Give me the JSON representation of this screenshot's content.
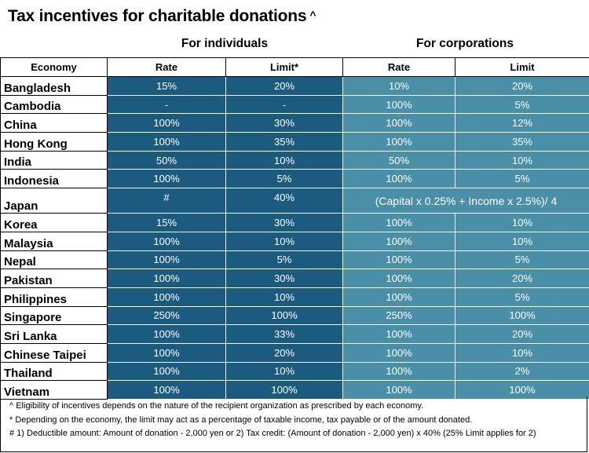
{
  "title": "Tax incentives for charitable donations",
  "title_marker": "^",
  "groups": {
    "individuals": "For individuals",
    "corporations": "For corporations"
  },
  "headers": {
    "economy": "Economy",
    "ind_rate": "Rate",
    "ind_limit": "Limit*",
    "corp_rate": "Rate",
    "corp_limit": "Limit"
  },
  "rows": [
    {
      "economy": "Bangladesh",
      "ind_rate": "15%",
      "ind_limit": "20%",
      "corp_rate": "10%",
      "corp_limit": "20%"
    },
    {
      "economy": "Cambodia",
      "ind_rate": "-",
      "ind_limit": "-",
      "corp_rate": "100%",
      "corp_limit": "5%"
    },
    {
      "economy": "China",
      "ind_rate": "100%",
      "ind_limit": "30%",
      "corp_rate": "100%",
      "corp_limit": "12%"
    },
    {
      "economy": "Hong Kong",
      "ind_rate": "100%",
      "ind_limit": "35%",
      "corp_rate": "100%",
      "corp_limit": "35%"
    },
    {
      "economy": "India",
      "ind_rate": "50%",
      "ind_limit": "10%",
      "corp_rate": "50%",
      "corp_limit": "10%"
    },
    {
      "economy": "Indonesia",
      "ind_rate": "100%",
      "ind_limit": "5%",
      "corp_rate": "100%",
      "corp_limit": "5%"
    },
    {
      "economy": "Japan",
      "ind_rate": "#",
      "ind_limit": "40%",
      "corp_combined": "(Capital x 0.25% + Income x 2.5%)/ 4"
    },
    {
      "economy": "Korea",
      "ind_rate": "15%",
      "ind_limit": "30%",
      "corp_rate": "100%",
      "corp_limit": "10%"
    },
    {
      "economy": "Malaysia",
      "ind_rate": "100%",
      "ind_limit": "10%",
      "corp_rate": "100%",
      "corp_limit": "10%"
    },
    {
      "economy": "Nepal",
      "ind_rate": "100%",
      "ind_limit": "5%",
      "corp_rate": "100%",
      "corp_limit": "5%"
    },
    {
      "economy": "Pakistan",
      "ind_rate": "100%",
      "ind_limit": "30%",
      "corp_rate": "100%",
      "corp_limit": "20%"
    },
    {
      "economy": "Philippines",
      "ind_rate": "100%",
      "ind_limit": "10%",
      "corp_rate": "100%",
      "corp_limit": "5%"
    },
    {
      "economy": "Singapore",
      "ind_rate": "250%",
      "ind_limit": "100%",
      "corp_rate": "250%",
      "corp_limit": "100%"
    },
    {
      "economy": "Sri Lanka",
      "ind_rate": "100%",
      "ind_limit": "33%",
      "corp_rate": "100%",
      "corp_limit": "20%"
    },
    {
      "economy": "Chinese Taipei",
      "ind_rate": "100%",
      "ind_limit": "20%",
      "corp_rate": "100%",
      "corp_limit": "10%"
    },
    {
      "economy": "Thailand",
      "ind_rate": "100%",
      "ind_limit": "10%",
      "corp_rate": "100%",
      "corp_limit": "2%"
    },
    {
      "economy": "Vietnam",
      "ind_rate": "100%",
      "ind_limit": "100%",
      "corp_rate": "100%",
      "corp_limit": "100%"
    }
  ],
  "notes": [
    "^ Eligibility of incentives depends on the nature of the recipient organization as prescribed by each economy.",
    "* Depending on the economy, the limit may act as a percentage of taxable income, tax payable or of the amount donated.",
    "# 1) Deductible amount:  Amount of donation - 2,000 yen or 2) Tax credit: (Amount of donation - 2,000 yen) x 40% (25% Limit applies for 2)"
  ],
  "colors": {
    "individuals_cell": "#1b5b7f",
    "corporations_cell": "#4a8fa8"
  }
}
